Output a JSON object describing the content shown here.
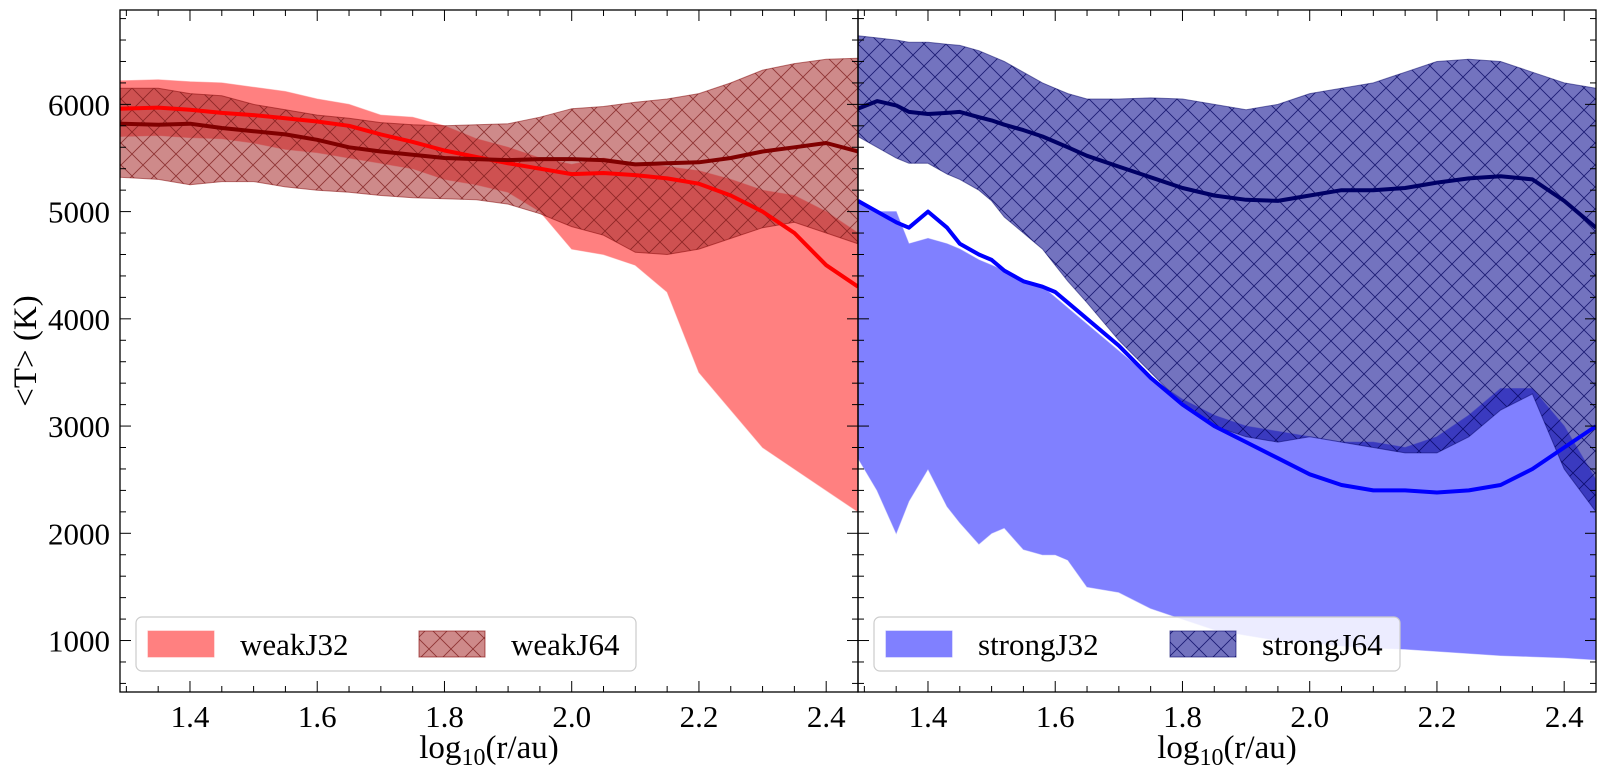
{
  "figure": {
    "ylabel": "<T> (K)",
    "xlabel_prefix": "log",
    "xlabel_sub": "10",
    "xlabel_suffix": "(r/au)"
  },
  "chart_data": [
    {
      "type": "line",
      "panel": "left",
      "xlim": [
        1.29,
        2.45
      ],
      "ylim": [
        520,
        6880
      ],
      "xticks": [
        1.4,
        1.6,
        1.8,
        2.0,
        2.2,
        2.4
      ],
      "xtick_labels": [
        "1.4",
        "1.6",
        "1.8",
        "2.0",
        "2.2",
        "2.4"
      ],
      "yticks": [
        1000,
        2000,
        3000,
        4000,
        5000,
        6000
      ],
      "ytick_labels": [
        "1000",
        "2000",
        "3000",
        "4000",
        "5000",
        "6000"
      ],
      "legend_position": "lower-left",
      "series": [
        {
          "name": "weakJ32",
          "fill": "#ff8080",
          "line_color": "#ff0000",
          "hatch": false,
          "x": [
            1.29,
            1.35,
            1.4,
            1.45,
            1.5,
            1.55,
            1.6,
            1.65,
            1.7,
            1.75,
            1.8,
            1.85,
            1.9,
            1.95,
            2.0,
            2.05,
            2.1,
            2.15,
            2.2,
            2.25,
            2.3,
            2.35,
            2.4,
            2.45
          ],
          "mean": [
            5960,
            5970,
            5950,
            5920,
            5900,
            5870,
            5840,
            5800,
            5720,
            5650,
            5570,
            5510,
            5450,
            5400,
            5350,
            5360,
            5340,
            5310,
            5260,
            5150,
            5000,
            4800,
            4500,
            4300
          ],
          "upper": [
            6220,
            6230,
            6210,
            6200,
            6160,
            6120,
            6050,
            6000,
            5900,
            5880,
            5800,
            5680,
            5600,
            5500,
            5440,
            5500,
            5450,
            5420,
            5380,
            5300,
            5200,
            5150,
            5000,
            4800
          ],
          "lower": [
            5700,
            5710,
            5690,
            5680,
            5640,
            5580,
            5550,
            5500,
            5450,
            5400,
            5300,
            5250,
            5180,
            5000,
            4650,
            4600,
            4500,
            4250,
            3500,
            3150,
            2800,
            2600,
            2400,
            2200
          ]
        },
        {
          "name": "weakJ64",
          "fill": "#a52a2a",
          "line_color": "#800000",
          "hatch": true,
          "x": [
            1.29,
            1.35,
            1.4,
            1.45,
            1.5,
            1.55,
            1.6,
            1.65,
            1.7,
            1.75,
            1.8,
            1.85,
            1.9,
            1.95,
            2.0,
            2.05,
            2.1,
            2.15,
            2.2,
            2.25,
            2.3,
            2.35,
            2.4,
            2.45
          ],
          "mean": [
            5820,
            5810,
            5820,
            5780,
            5750,
            5720,
            5670,
            5600,
            5560,
            5530,
            5500,
            5490,
            5480,
            5490,
            5490,
            5480,
            5440,
            5450,
            5460,
            5500,
            5560,
            5600,
            5640,
            5560
          ],
          "upper": [
            6150,
            6150,
            6100,
            6080,
            6000,
            5950,
            5900,
            5870,
            5830,
            5810,
            5800,
            5810,
            5820,
            5880,
            5960,
            5980,
            6020,
            6050,
            6100,
            6200,
            6320,
            6380,
            6420,
            6430
          ],
          "lower": [
            5320,
            5300,
            5250,
            5280,
            5280,
            5230,
            5200,
            5180,
            5150,
            5130,
            5120,
            5110,
            5070,
            4980,
            4860,
            4780,
            4620,
            4600,
            4650,
            4750,
            4850,
            4900,
            4800,
            4700
          ]
        }
      ]
    },
    {
      "type": "line",
      "panel": "right",
      "xlim": [
        1.29,
        2.45
      ],
      "ylim": [
        520,
        6880
      ],
      "xticks": [
        1.4,
        1.6,
        1.8,
        2.0,
        2.2,
        2.4
      ],
      "xtick_labels": [
        "1.4",
        "1.6",
        "1.8",
        "2.0",
        "2.2",
        "2.4"
      ],
      "yticks": [
        1000,
        2000,
        3000,
        4000,
        5000,
        6000
      ],
      "legend_position": "lower-left",
      "series": [
        {
          "name": "strongJ32",
          "fill": "#8080ff",
          "line_color": "#0000ff",
          "hatch": false,
          "x": [
            1.29,
            1.32,
            1.35,
            1.37,
            1.4,
            1.43,
            1.45,
            1.48,
            1.5,
            1.52,
            1.55,
            1.58,
            1.6,
            1.62,
            1.65,
            1.7,
            1.75,
            1.8,
            1.85,
            1.9,
            1.95,
            2.0,
            2.05,
            2.1,
            2.15,
            2.2,
            2.25,
            2.3,
            2.35,
            2.4,
            2.45
          ],
          "mean": [
            5100,
            5000,
            4900,
            4850,
            5000,
            4850,
            4700,
            4600,
            4550,
            4450,
            4350,
            4300,
            4250,
            4150,
            4000,
            3750,
            3450,
            3200,
            3000,
            2850,
            2700,
            2550,
            2450,
            2400,
            2400,
            2380,
            2400,
            2450,
            2600,
            2800,
            3000
          ],
          "upper": [
            5100,
            5000,
            5000,
            4700,
            4750,
            4700,
            4650,
            4550,
            4500,
            4450,
            4350,
            4300,
            4200,
            4100,
            3950,
            3700,
            3450,
            3250,
            3100,
            3000,
            2950,
            2900,
            2850,
            2850,
            2800,
            2900,
            3100,
            3350,
            3350,
            3000,
            2500
          ],
          "lower": [
            2700,
            2400,
            2000,
            2300,
            2600,
            2250,
            2100,
            1900,
            2000,
            2050,
            1850,
            1800,
            1800,
            1750,
            1500,
            1450,
            1300,
            1200,
            1100,
            1050,
            1000,
            980,
            950,
            930,
            920,
            900,
            880,
            860,
            850,
            840,
            820
          ]
        },
        {
          "name": "strongJ64",
          "fill": "#00008b",
          "line_color": "#000066",
          "hatch": true,
          "x": [
            1.29,
            1.32,
            1.35,
            1.37,
            1.4,
            1.43,
            1.45,
            1.48,
            1.5,
            1.52,
            1.55,
            1.58,
            1.6,
            1.62,
            1.65,
            1.7,
            1.75,
            1.8,
            1.85,
            1.9,
            1.95,
            2.0,
            2.05,
            2.1,
            2.15,
            2.2,
            2.25,
            2.3,
            2.35,
            2.4,
            2.45
          ],
          "mean": [
            5960,
            6030,
            5990,
            5930,
            5910,
            5920,
            5930,
            5880,
            5850,
            5810,
            5760,
            5700,
            5650,
            5600,
            5520,
            5420,
            5320,
            5220,
            5150,
            5110,
            5100,
            5150,
            5200,
            5200,
            5220,
            5270,
            5310,
            5330,
            5300,
            5100,
            4850
          ],
          "upper": [
            6640,
            6620,
            6600,
            6580,
            6580,
            6560,
            6550,
            6500,
            6450,
            6400,
            6300,
            6200,
            6150,
            6100,
            6050,
            6050,
            6060,
            6050,
            6000,
            5950,
            6000,
            6100,
            6150,
            6200,
            6300,
            6400,
            6420,
            6400,
            6300,
            6200,
            6150
          ],
          "lower": [
            5700,
            5600,
            5500,
            5450,
            5450,
            5350,
            5300,
            5200,
            5100,
            4950,
            4800,
            4650,
            4500,
            4350,
            4150,
            3800,
            3500,
            3200,
            3000,
            2900,
            2850,
            2900,
            2850,
            2800,
            2750,
            2750,
            2900,
            3150,
            3300,
            2600,
            2200
          ]
        }
      ]
    }
  ]
}
